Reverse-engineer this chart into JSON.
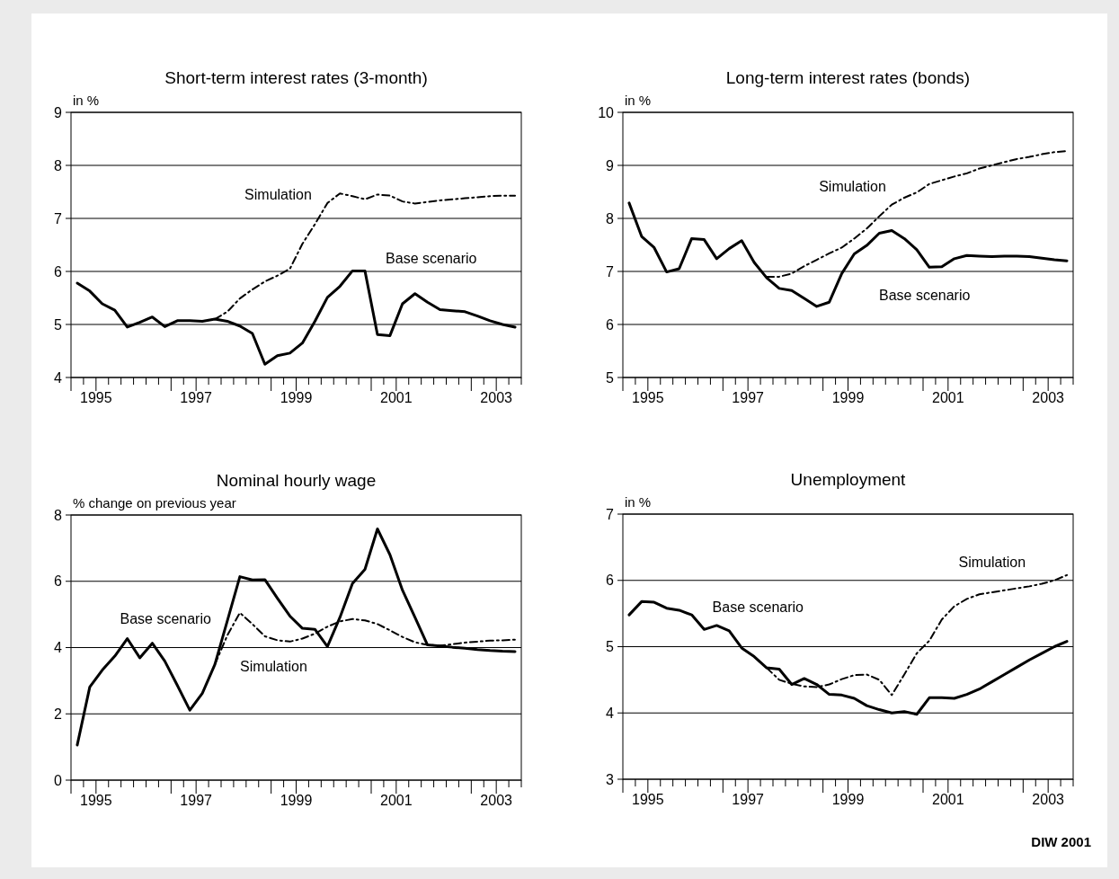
{
  "chart_data": [
    {
      "type": "line",
      "title": "Short-term interest rates (3-month)",
      "ylabel": "in %",
      "x": [
        1995.125,
        1995.375,
        1995.625,
        1995.875,
        1996.125,
        1996.375,
        1996.625,
        1996.875,
        1997.125,
        1997.375,
        1997.625,
        1997.875,
        1998.125,
        1998.375,
        1998.625,
        1998.875,
        1999.125,
        1999.375,
        1999.625,
        1999.875,
        2000.125,
        2000.375,
        2000.625,
        2000.875,
        2001.125,
        2001.375,
        2001.625,
        2001.875,
        2002.125,
        2002.375,
        2002.625,
        2002.875,
        2003.125,
        2003.375,
        2003.625,
        2003.875
      ],
      "xlim": [
        1995,
        2004
      ],
      "xticks": [
        {
          "value": 1995,
          "label": null
        },
        {
          "value": 1995.25,
          "label": null
        },
        {
          "value": 1995.5,
          "label": "1995"
        },
        {
          "value": 1995.75,
          "label": null
        },
        {
          "value": 1996,
          "label": null
        },
        {
          "value": 1996.25,
          "label": null
        },
        {
          "value": 1996.5,
          "label": null
        },
        {
          "value": 1996.75,
          "label": null
        },
        {
          "value": 1997,
          "label": null
        },
        {
          "value": 1997.25,
          "label": null
        },
        {
          "value": 1997.5,
          "label": "1997"
        },
        {
          "value": 1997.75,
          "label": null
        },
        {
          "value": 1998,
          "label": null
        },
        {
          "value": 1998.25,
          "label": null
        },
        {
          "value": 1998.5,
          "label": null
        },
        {
          "value": 1998.75,
          "label": null
        },
        {
          "value": 1999,
          "label": null
        },
        {
          "value": 1999.25,
          "label": null
        },
        {
          "value": 1999.5,
          "label": "1999"
        },
        {
          "value": 1999.75,
          "label": null
        },
        {
          "value": 2000,
          "label": null
        },
        {
          "value": 2000.25,
          "label": null
        },
        {
          "value": 2000.5,
          "label": null
        },
        {
          "value": 2000.75,
          "label": null
        },
        {
          "value": 2001,
          "label": null
        },
        {
          "value": 2001.25,
          "label": null
        },
        {
          "value": 2001.5,
          "label": "2001"
        },
        {
          "value": 2001.75,
          "label": null
        },
        {
          "value": 2002,
          "label": null
        },
        {
          "value": 2002.25,
          "label": null
        },
        {
          "value": 2002.5,
          "label": null
        },
        {
          "value": 2002.75,
          "label": null
        },
        {
          "value": 2003,
          "label": null
        },
        {
          "value": 2003.25,
          "label": null
        },
        {
          "value": 2003.5,
          "label": "2003"
        },
        {
          "value": 2003.75,
          "label": null
        },
        {
          "value": 2004,
          "label": null
        }
      ],
      "ylim": [
        4,
        9
      ],
      "yticks": [
        4,
        5,
        6,
        7,
        8,
        9
      ],
      "grid": "y",
      "series": [
        {
          "name": "Base scenario",
          "color": "#000000",
          "line_style": "solid",
          "values": [
            5.78,
            5.63,
            5.39,
            5.27,
            4.95,
            5.04,
            5.14,
            4.96,
            5.07,
            5.07,
            5.06,
            5.1,
            5.06,
            4.97,
            4.83,
            4.25,
            4.41,
            4.46,
            4.65,
            5.06,
            5.51,
            5.72,
            6.01,
            6.01,
            4.81,
            4.79,
            5.39,
            5.58,
            5.42,
            5.28,
            5.26,
            5.24,
            5.16,
            5.07,
            5.0,
            4.95
          ]
        },
        {
          "name": "Simulation",
          "color": "#000000",
          "line_style": "dashed",
          "values": [
            null,
            null,
            null,
            null,
            null,
            null,
            null,
            null,
            null,
            null,
            null,
            5.1,
            5.24,
            5.49,
            5.66,
            5.81,
            5.92,
            6.05,
            6.52,
            6.89,
            7.29,
            7.47,
            7.42,
            7.36,
            7.45,
            7.43,
            7.32,
            7.28,
            7.31,
            7.34,
            7.36,
            7.38,
            7.4,
            7.42,
            7.43,
            7.43
          ]
        }
      ]
    },
    {
      "type": "line",
      "title": "Long-term interest rates (bonds)",
      "ylabel": "in %",
      "x": [
        1995.125,
        1995.375,
        1995.625,
        1995.875,
        1996.125,
        1996.375,
        1996.625,
        1996.875,
        1997.125,
        1997.375,
        1997.625,
        1997.875,
        1998.125,
        1998.375,
        1998.625,
        1998.875,
        1999.125,
        1999.375,
        1999.625,
        1999.875,
        2000.125,
        2000.375,
        2000.625,
        2000.875,
        2001.125,
        2001.375,
        2001.625,
        2001.875,
        2002.125,
        2002.375,
        2002.625,
        2002.875,
        2003.125,
        2003.375,
        2003.625,
        2003.875
      ],
      "xlim": [
        1995,
        2004
      ],
      "xticks": [
        {
          "value": 1995,
          "label": null
        },
        {
          "value": 1995.25,
          "label": null
        },
        {
          "value": 1995.5,
          "label": "1995"
        },
        {
          "value": 1995.75,
          "label": null
        },
        {
          "value": 1996,
          "label": null
        },
        {
          "value": 1996.25,
          "label": null
        },
        {
          "value": 1996.5,
          "label": null
        },
        {
          "value": 1996.75,
          "label": null
        },
        {
          "value": 1997,
          "label": null
        },
        {
          "value": 1997.25,
          "label": null
        },
        {
          "value": 1997.5,
          "label": "1997"
        },
        {
          "value": 1997.75,
          "label": null
        },
        {
          "value": 1998,
          "label": null
        },
        {
          "value": 1998.25,
          "label": null
        },
        {
          "value": 1998.5,
          "label": null
        },
        {
          "value": 1998.75,
          "label": null
        },
        {
          "value": 1999,
          "label": null
        },
        {
          "value": 1999.25,
          "label": null
        },
        {
          "value": 1999.5,
          "label": "1999"
        },
        {
          "value": 1999.75,
          "label": null
        },
        {
          "value": 2000,
          "label": null
        },
        {
          "value": 2000.25,
          "label": null
        },
        {
          "value": 2000.5,
          "label": null
        },
        {
          "value": 2000.75,
          "label": null
        },
        {
          "value": 2001,
          "label": null
        },
        {
          "value": 2001.25,
          "label": null
        },
        {
          "value": 2001.5,
          "label": "2001"
        },
        {
          "value": 2001.75,
          "label": null
        },
        {
          "value": 2002,
          "label": null
        },
        {
          "value": 2002.25,
          "label": null
        },
        {
          "value": 2002.5,
          "label": null
        },
        {
          "value": 2002.75,
          "label": null
        },
        {
          "value": 2003,
          "label": null
        },
        {
          "value": 2003.25,
          "label": null
        },
        {
          "value": 2003.5,
          "label": "2003"
        },
        {
          "value": 2003.75,
          "label": null
        },
        {
          "value": 2004,
          "label": null
        }
      ],
      "ylim": [
        5,
        10
      ],
      "yticks": [
        5,
        6,
        7,
        8,
        9,
        10
      ],
      "grid": "y",
      "series": [
        {
          "name": "Base scenario",
          "color": "#000000",
          "line_style": "solid",
          "values": [
            8.29,
            7.66,
            7.45,
            6.99,
            7.05,
            7.62,
            7.6,
            7.24,
            7.43,
            7.58,
            7.17,
            6.88,
            6.68,
            6.64,
            6.49,
            6.34,
            6.42,
            6.96,
            7.33,
            7.49,
            7.72,
            7.77,
            7.62,
            7.41,
            7.08,
            7.09,
            7.24,
            7.3,
            7.29,
            7.28,
            7.29,
            7.29,
            7.28,
            7.25,
            7.22,
            7.2
          ]
        },
        {
          "name": "Simulation",
          "color": "#000000",
          "line_style": "dashed",
          "values": [
            null,
            null,
            null,
            null,
            null,
            null,
            null,
            null,
            null,
            null,
            null,
            6.9,
            6.9,
            6.96,
            7.1,
            7.22,
            7.34,
            7.45,
            7.62,
            7.81,
            8.04,
            8.26,
            8.39,
            8.49,
            8.65,
            8.72,
            8.79,
            8.85,
            8.94,
            9.0,
            9.06,
            9.12,
            9.16,
            9.21,
            9.25,
            9.27
          ]
        }
      ]
    },
    {
      "type": "line",
      "title": "Nominal hourly wage",
      "ylabel": "% change on previous year",
      "x": [
        1995.125,
        1995.375,
        1995.625,
        1995.875,
        1996.125,
        1996.375,
        1996.625,
        1996.875,
        1997.125,
        1997.375,
        1997.625,
        1997.875,
        1998.125,
        1998.375,
        1998.625,
        1998.875,
        1999.125,
        1999.375,
        1999.625,
        1999.875,
        2000.125,
        2000.375,
        2000.625,
        2000.875,
        2001.125,
        2001.375,
        2001.625,
        2001.875,
        2002.125,
        2002.375,
        2002.625,
        2002.875,
        2003.125,
        2003.375,
        2003.625,
        2003.875
      ],
      "xlim": [
        1995,
        2004
      ],
      "xticks": [
        {
          "value": 1995,
          "label": null
        },
        {
          "value": 1995.25,
          "label": null
        },
        {
          "value": 1995.5,
          "label": "1995"
        },
        {
          "value": 1995.75,
          "label": null
        },
        {
          "value": 1996,
          "label": null
        },
        {
          "value": 1996.25,
          "label": null
        },
        {
          "value": 1996.5,
          "label": null
        },
        {
          "value": 1996.75,
          "label": null
        },
        {
          "value": 1997,
          "label": null
        },
        {
          "value": 1997.25,
          "label": null
        },
        {
          "value": 1997.5,
          "label": "1997"
        },
        {
          "value": 1997.75,
          "label": null
        },
        {
          "value": 1998,
          "label": null
        },
        {
          "value": 1998.25,
          "label": null
        },
        {
          "value": 1998.5,
          "label": null
        },
        {
          "value": 1998.75,
          "label": null
        },
        {
          "value": 1999,
          "label": null
        },
        {
          "value": 1999.25,
          "label": null
        },
        {
          "value": 1999.5,
          "label": "1999"
        },
        {
          "value": 1999.75,
          "label": null
        },
        {
          "value": 2000,
          "label": null
        },
        {
          "value": 2000.25,
          "label": null
        },
        {
          "value": 2000.5,
          "label": null
        },
        {
          "value": 2000.75,
          "label": null
        },
        {
          "value": 2001,
          "label": null
        },
        {
          "value": 2001.25,
          "label": null
        },
        {
          "value": 2001.5,
          "label": "2001"
        },
        {
          "value": 2001.75,
          "label": null
        },
        {
          "value": 2002,
          "label": null
        },
        {
          "value": 2002.25,
          "label": null
        },
        {
          "value": 2002.5,
          "label": null
        },
        {
          "value": 2002.75,
          "label": null
        },
        {
          "value": 2003,
          "label": null
        },
        {
          "value": 2003.25,
          "label": null
        },
        {
          "value": 2003.5,
          "label": "2003"
        },
        {
          "value": 2003.75,
          "label": null
        },
        {
          "value": 2004,
          "label": null
        }
      ],
      "ylim": [
        0,
        8
      ],
      "yticks": [
        0,
        2,
        4,
        6,
        8
      ],
      "grid": "y",
      "series": [
        {
          "name": "Base scenario",
          "color": "#000000",
          "line_style": "solid",
          "values": [
            1.06,
            2.81,
            3.32,
            3.74,
            4.27,
            3.69,
            4.13,
            3.59,
            2.86,
            2.11,
            2.62,
            3.49,
            4.81,
            6.14,
            6.04,
            6.05,
            5.49,
            4.95,
            4.58,
            4.55,
            4.03,
            4.91,
            5.93,
            6.36,
            7.58,
            6.8,
            5.73,
            4.91,
            4.08,
            4.05,
            4.01,
            3.98,
            3.94,
            3.91,
            3.89,
            3.88
          ]
        },
        {
          "name": "Simulation",
          "color": "#000000",
          "line_style": "dashed",
          "values": [
            null,
            null,
            null,
            null,
            null,
            null,
            null,
            null,
            null,
            null,
            null,
            3.49,
            4.37,
            5.05,
            4.71,
            4.34,
            4.22,
            4.18,
            4.27,
            4.42,
            4.63,
            4.79,
            4.86,
            4.82,
            4.71,
            4.52,
            4.32,
            4.16,
            4.08,
            4.06,
            4.1,
            4.15,
            4.18,
            4.21,
            4.22,
            4.24
          ]
        }
      ]
    },
    {
      "type": "line",
      "title": "Unemployment",
      "ylabel": "in %",
      "annotations": [
        "DIW 2001"
      ],
      "x": [
        1995.125,
        1995.375,
        1995.625,
        1995.875,
        1996.125,
        1996.375,
        1996.625,
        1996.875,
        1997.125,
        1997.375,
        1997.625,
        1997.875,
        1998.125,
        1998.375,
        1998.625,
        1998.875,
        1999.125,
        1999.375,
        1999.625,
        1999.875,
        2000.125,
        2000.375,
        2000.625,
        2000.875,
        2001.125,
        2001.375,
        2001.625,
        2001.875,
        2002.125,
        2002.375,
        2002.625,
        2002.875,
        2003.125,
        2003.375,
        2003.625,
        2003.875
      ],
      "xlim": [
        1995,
        2004
      ],
      "xticks": [
        {
          "value": 1995,
          "label": null
        },
        {
          "value": 1995.25,
          "label": null
        },
        {
          "value": 1995.5,
          "label": "1995"
        },
        {
          "value": 1995.75,
          "label": null
        },
        {
          "value": 1996,
          "label": null
        },
        {
          "value": 1996.25,
          "label": null
        },
        {
          "value": 1996.5,
          "label": null
        },
        {
          "value": 1996.75,
          "label": null
        },
        {
          "value": 1997,
          "label": null
        },
        {
          "value": 1997.25,
          "label": null
        },
        {
          "value": 1997.5,
          "label": "1997"
        },
        {
          "value": 1997.75,
          "label": null
        },
        {
          "value": 1998,
          "label": null
        },
        {
          "value": 1998.25,
          "label": null
        },
        {
          "value": 1998.5,
          "label": null
        },
        {
          "value": 1998.75,
          "label": null
        },
        {
          "value": 1999,
          "label": null
        },
        {
          "value": 1999.25,
          "label": null
        },
        {
          "value": 1999.5,
          "label": "1999"
        },
        {
          "value": 1999.75,
          "label": null
        },
        {
          "value": 2000,
          "label": null
        },
        {
          "value": 2000.25,
          "label": null
        },
        {
          "value": 2000.5,
          "label": null
        },
        {
          "value": 2000.75,
          "label": null
        },
        {
          "value": 2001,
          "label": null
        },
        {
          "value": 2001.25,
          "label": null
        },
        {
          "value": 2001.5,
          "label": "2001"
        },
        {
          "value": 2001.75,
          "label": null
        },
        {
          "value": 2002,
          "label": null
        },
        {
          "value": 2002.25,
          "label": null
        },
        {
          "value": 2002.5,
          "label": null
        },
        {
          "value": 2002.75,
          "label": null
        },
        {
          "value": 2003,
          "label": null
        },
        {
          "value": 2003.25,
          "label": null
        },
        {
          "value": 2003.5,
          "label": "2003"
        },
        {
          "value": 2003.75,
          "label": null
        },
        {
          "value": 2004,
          "label": null
        }
      ],
      "ylim": [
        3,
        7
      ],
      "yticks": [
        3,
        4,
        5,
        6,
        7
      ],
      "grid": "y",
      "series": [
        {
          "name": "Base scenario",
          "color": "#000000",
          "line_style": "solid",
          "values": [
            5.48,
            5.68,
            5.67,
            5.58,
            5.55,
            5.48,
            5.26,
            5.32,
            5.24,
            4.98,
            4.85,
            4.68,
            4.66,
            4.43,
            4.52,
            4.43,
            4.28,
            4.27,
            4.22,
            4.11,
            4.05,
            4.0,
            4.02,
            3.98,
            4.23,
            4.23,
            4.22,
            4.28,
            4.36,
            4.47,
            4.58,
            4.69,
            4.8,
            4.9,
            5.0,
            5.08
          ]
        },
        {
          "name": "Simulation",
          "color": "#000000",
          "line_style": "dashed",
          "values": [
            null,
            null,
            null,
            null,
            null,
            null,
            null,
            null,
            null,
            null,
            null,
            4.68,
            4.5,
            4.44,
            4.4,
            4.39,
            4.43,
            4.51,
            4.57,
            4.58,
            4.5,
            4.27,
            4.58,
            4.9,
            5.09,
            5.41,
            5.61,
            5.72,
            5.79,
            5.82,
            5.85,
            5.88,
            5.91,
            5.95,
            6.0,
            6.08
          ]
        }
      ]
    }
  ]
}
